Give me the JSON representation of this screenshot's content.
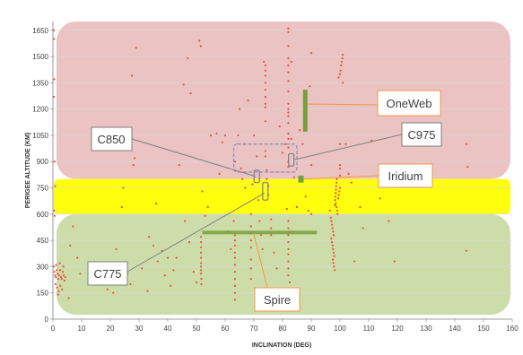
{
  "chart_data": {
    "type": "scatter",
    "xlabel": "INCLINATION (DEG)",
    "ylabel": "PERIGEE ALTITUDE (KM)",
    "xlim": [
      0,
      160
    ],
    "ylim": [
      0,
      1700
    ],
    "xticks": [
      0,
      10,
      20,
      30,
      40,
      50,
      60,
      70,
      80,
      90,
      100,
      110,
      120,
      130,
      140,
      150,
      160
    ],
    "yticks": [
      0,
      150,
      300,
      450,
      600,
      750,
      900,
      1050,
      1200,
      1350,
      1500,
      1650
    ],
    "grid": "horizontal",
    "colors": {
      "points": "#e8503a",
      "high_band": "#e6b8b7",
      "mid_band": "#ffff00",
      "low_band": "#c4d79b",
      "callout_border": "#f79646",
      "constellation_bar": "#76a03c",
      "cluster_outline": "#8f8fc8"
    },
    "bands": [
      {
        "altitude_range": [
          800,
          1700
        ]
      },
      {
        "altitude_range": [
          600,
          800
        ]
      },
      {
        "altitude_range": [
          25,
          600
        ]
      }
    ],
    "constellation_marks": [
      {
        "label": "OneWeb",
        "inclination": 87.9,
        "altitude_range": [
          1070,
          1310
        ]
      },
      {
        "label": "Iridium",
        "inclination": 86.4,
        "altitude_range": [
          780,
          820
        ]
      },
      {
        "label": "Spire",
        "inclination": [
          52,
          92
        ],
        "altitude": 495
      },
      {
        "label": "C775",
        "inclination": 74,
        "altitude_range": [
          680,
          780
        ]
      },
      {
        "label": "C850",
        "inclination": 71,
        "altitude_range": [
          780,
          850
        ]
      },
      {
        "label": "C975",
        "inclination": 83,
        "altitude_range": [
          875,
          945
        ]
      }
    ],
    "series": [
      {
        "points": [
          [
            0.3,
            1650
          ],
          [
            0.4,
            1600
          ],
          [
            0.5,
            1370
          ],
          [
            0.3,
            1270
          ],
          [
            0.6,
            900
          ],
          [
            0.8,
            760
          ],
          [
            0.4,
            620
          ],
          [
            0.6,
            590
          ],
          [
            0.3,
            300
          ],
          [
            0.5,
            270
          ],
          [
            0.7,
            250
          ],
          [
            1.0,
            240
          ],
          [
            1.3,
            280
          ],
          [
            1.6,
            260
          ],
          [
            1.9,
            230
          ],
          [
            2.2,
            250
          ],
          [
            2.5,
            280
          ],
          [
            2.8,
            240
          ],
          [
            3.1,
            230
          ],
          [
            3.4,
            270
          ],
          [
            3.7,
            250
          ],
          [
            4.0,
            220
          ],
          [
            4.3,
            240
          ],
          [
            0.9,
            200
          ],
          [
            1.4,
            180
          ],
          [
            2.0,
            160
          ],
          [
            2.6,
            190
          ],
          [
            3.2,
            170
          ],
          [
            1.1,
            310
          ],
          [
            2.4,
            320
          ],
          [
            3.6,
            300
          ],
          [
            1.8,
            140
          ],
          [
            5.5,
            120
          ],
          [
            7.0,
            530
          ],
          [
            8.5,
            350
          ],
          [
            6.0,
            420
          ],
          [
            9.5,
            260
          ],
          [
            13,
            310
          ],
          [
            17,
            240
          ],
          [
            19,
            170
          ],
          [
            21,
            150
          ],
          [
            22,
            400
          ],
          [
            24,
            640
          ],
          [
            24.5,
            750
          ],
          [
            26,
            260
          ],
          [
            27,
            200
          ],
          [
            27.5,
            1390
          ],
          [
            28,
            880
          ],
          [
            28.5,
            920
          ],
          [
            29,
            1550
          ],
          [
            31,
            290
          ],
          [
            33,
            160
          ],
          [
            33.5,
            470
          ],
          [
            35,
            420
          ],
          [
            36,
            660
          ],
          [
            36.5,
            330
          ],
          [
            38,
            390
          ],
          [
            39,
            250
          ],
          [
            40,
            350
          ],
          [
            41,
            190
          ],
          [
            42,
            280
          ],
          [
            43,
            350
          ],
          [
            44,
            880
          ],
          [
            45.5,
            1340
          ],
          [
            46,
            560
          ],
          [
            47,
            1490
          ],
          [
            47.5,
            440
          ],
          [
            48,
            1290
          ],
          [
            49,
            270
          ],
          [
            50,
            210
          ],
          [
            51,
            1590
          ],
          [
            51.5,
            1560
          ],
          [
            51.6,
            410
          ],
          [
            51.6,
            380
          ],
          [
            51.6,
            350
          ],
          [
            51.6,
            320
          ],
          [
            51.6,
            300
          ],
          [
            51.6,
            280
          ],
          [
            51.6,
            260
          ],
          [
            51.6,
            440
          ],
          [
            51.6,
            470
          ],
          [
            51.7,
            230
          ],
          [
            51.7,
            200
          ],
          [
            52,
            730
          ],
          [
            53,
            590
          ],
          [
            54,
            640
          ],
          [
            55,
            1050
          ],
          [
            57,
            1060
          ],
          [
            58,
            830
          ],
          [
            59,
            1010
          ],
          [
            60,
            1050
          ],
          [
            61,
            500
          ],
          [
            62,
            400
          ],
          [
            63,
            560
          ],
          [
            63.4,
            480
          ],
          [
            63.4,
            450
          ],
          [
            63.4,
            420
          ],
          [
            63.4,
            380
          ],
          [
            63.4,
            350
          ],
          [
            63.4,
            310
          ],
          [
            63.4,
            270
          ],
          [
            63.4,
            230
          ],
          [
            63.4,
            190
          ],
          [
            63.4,
            150
          ],
          [
            63.4,
            110
          ],
          [
            63.4,
            900
          ],
          [
            64.5,
            1050
          ],
          [
            65,
            1200
          ],
          [
            65.5,
            860
          ],
          [
            66,
            800
          ],
          [
            66.5,
            1000
          ],
          [
            67,
            750
          ],
          [
            68,
            1250
          ],
          [
            69,
            600
          ],
          [
            69,
            530
          ],
          [
            69,
            490
          ],
          [
            69,
            450
          ],
          [
            69,
            410
          ],
          [
            69,
            340
          ],
          [
            69,
            290
          ],
          [
            69,
            230
          ],
          [
            69.5,
            770
          ],
          [
            70,
            1050
          ],
          [
            71,
            930
          ],
          [
            71.5,
            680
          ],
          [
            72,
            560
          ],
          [
            72.5,
            480
          ],
          [
            73,
            400
          ],
          [
            73.5,
            1470
          ],
          [
            74,
            1450
          ],
          [
            74,
            1420
          ],
          [
            74,
            1390
          ],
          [
            74,
            1350
          ],
          [
            74,
            1310
          ],
          [
            74,
            1270
          ],
          [
            74,
            1230
          ],
          [
            74,
            1210
          ],
          [
            74,
            1130
          ],
          [
            74,
            960
          ],
          [
            74,
            930
          ],
          [
            74.5,
            850
          ],
          [
            74.5,
            800
          ],
          [
            75,
            760
          ],
          [
            75,
            710
          ],
          [
            76,
            570
          ],
          [
            76,
            520
          ],
          [
            76,
            480
          ],
          [
            77,
            380
          ],
          [
            78,
            290
          ],
          [
            79,
            1100
          ],
          [
            80,
            950
          ],
          [
            81,
            1000
          ],
          [
            81.5,
            630
          ],
          [
            82,
            1660
          ],
          [
            82,
            1640
          ],
          [
            82,
            1560
          ],
          [
            82,
            1490
          ],
          [
            82,
            1450
          ],
          [
            82,
            1410
          ],
          [
            82,
            1360
          ],
          [
            82,
            1300
          ],
          [
            82,
            1230
          ],
          [
            82,
            1200
          ],
          [
            82,
            1180
          ],
          [
            82,
            1160
          ],
          [
            82,
            1120
          ],
          [
            82,
            1060
          ],
          [
            82,
            1030
          ],
          [
            82,
            980
          ],
          [
            82,
            900
          ],
          [
            82,
            870
          ],
          [
            82,
            560
          ],
          [
            82,
            520
          ],
          [
            82,
            480
          ],
          [
            82,
            440
          ],
          [
            82,
            400
          ],
          [
            82,
            370
          ],
          [
            82,
            330
          ],
          [
            82,
            290
          ],
          [
            82,
            250
          ],
          [
            82.5,
            210
          ],
          [
            83,
            1470
          ],
          [
            83,
            1030
          ],
          [
            84,
            810
          ],
          [
            85,
            640
          ],
          [
            86,
            1080
          ],
          [
            87,
            1000
          ],
          [
            88,
            700
          ],
          [
            89,
            620
          ],
          [
            90,
            880
          ],
          [
            90,
            1520
          ],
          [
            89.5,
            1330
          ],
          [
            90,
            600
          ],
          [
            96.5,
            620
          ],
          [
            96.8,
            580
          ],
          [
            97,
            560
          ],
          [
            97.2,
            540
          ],
          [
            97.4,
            520
          ],
          [
            97.6,
            500
          ],
          [
            97.8,
            480
          ],
          [
            97,
            460
          ],
          [
            97.2,
            440
          ],
          [
            97.4,
            420
          ],
          [
            97.6,
            400
          ],
          [
            97.8,
            380
          ],
          [
            98,
            360
          ],
          [
            97.5,
            340
          ],
          [
            97.7,
            320
          ],
          [
            97.9,
            300
          ],
          [
            98.1,
            280
          ],
          [
            98.3,
            680
          ],
          [
            98.4,
            700
          ],
          [
            98.5,
            720
          ],
          [
            98.6,
            740
          ],
          [
            98.7,
            760
          ],
          [
            98.8,
            780
          ],
          [
            98.9,
            800
          ],
          [
            98.2,
            650
          ],
          [
            98.5,
            660
          ],
          [
            98.8,
            640
          ],
          [
            99,
            620
          ],
          [
            99.2,
            600
          ],
          [
            99.4,
            690
          ],
          [
            99.6,
            710
          ],
          [
            99.8,
            730
          ],
          [
            100,
            750
          ],
          [
            100,
            820
          ],
          [
            100,
            860
          ],
          [
            100,
            880
          ],
          [
            100,
            1000
          ],
          [
            100,
            1400
          ],
          [
            100.2,
            1420
          ],
          [
            100.4,
            1450
          ],
          [
            100.6,
            1470
          ],
          [
            100.8,
            1490
          ],
          [
            101,
            1510
          ],
          [
            99.5,
            1380
          ],
          [
            101,
            1350
          ],
          [
            102,
            1000
          ],
          [
            103,
            830
          ],
          [
            104,
            780
          ],
          [
            105,
            330
          ],
          [
            107,
            640
          ],
          [
            108,
            520
          ],
          [
            111,
            1020
          ],
          [
            114,
            690
          ],
          [
            117,
            560
          ],
          [
            119,
            330
          ],
          [
            144,
            1000
          ],
          [
            144.5,
            870
          ],
          [
            144,
            390
          ]
        ]
      }
    ]
  },
  "callouts": {
    "oneweb": "OneWeb",
    "c975": "C975",
    "c850": "C850",
    "iridium": "Iridium",
    "c775": "C775",
    "spire": "Spire"
  }
}
